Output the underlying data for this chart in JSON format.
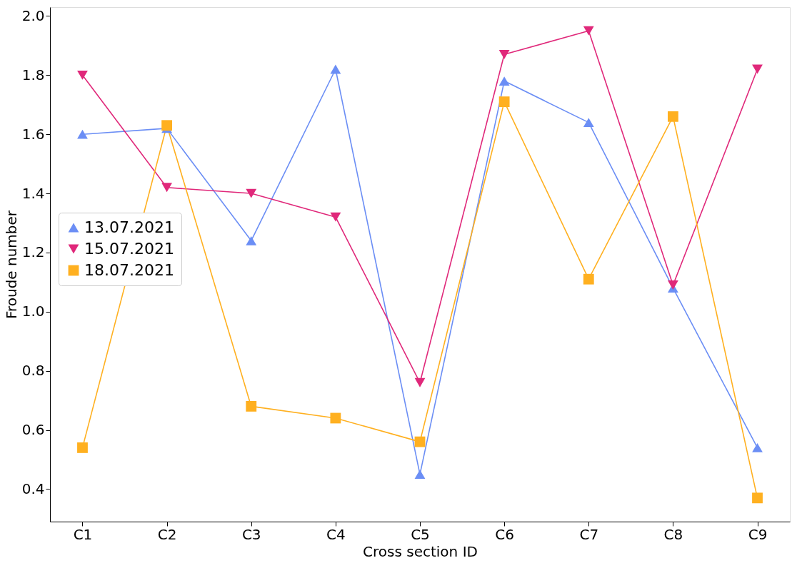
{
  "chart_data": {
    "type": "line",
    "xlabel": "Cross section ID",
    "ylabel": "Froude number",
    "categories": [
      "C1",
      "C2",
      "C3",
      "C4",
      "C5",
      "C6",
      "C7",
      "C8",
      "C9"
    ],
    "series": [
      {
        "name": "13.07.2021",
        "color": "#6b8ef5",
        "marker": "triangle",
        "values": [
          1.6,
          1.62,
          1.24,
          1.82,
          0.45,
          1.78,
          1.64,
          1.08,
          0.54
        ]
      },
      {
        "name": "15.07.2021",
        "color": "#e0287a",
        "marker": "triangle_down",
        "values": [
          1.8,
          1.42,
          1.4,
          1.32,
          0.76,
          1.87,
          1.95,
          1.09,
          1.82
        ]
      },
      {
        "name": "18.07.2021",
        "color": "#ffb020",
        "marker": "square",
        "values": [
          0.54,
          1.63,
          0.68,
          0.64,
          0.56,
          1.71,
          1.11,
          1.66,
          0.37
        ]
      }
    ],
    "ylim": [
      0.29,
      2.03
    ],
    "yticks": [
      0.4,
      0.6,
      0.8,
      {
        "value": 1,
        "label": "1.0"
      },
      1.2,
      1.4,
      1.6,
      1.8,
      {
        "value": 2,
        "label": "2.0"
      }
    ],
    "grid": false,
    "legend": "left",
    "line_style": "solid"
  }
}
